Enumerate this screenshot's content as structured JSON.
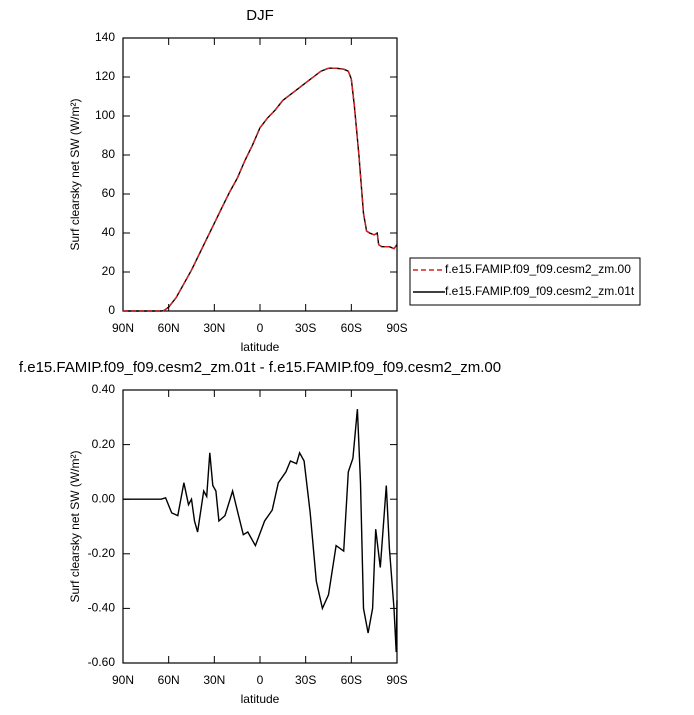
{
  "chart_data": [
    {
      "type": "line",
      "title": "DJF",
      "xlabel": "latitude",
      "ylabel": "Surf clearsky net SW (W/m²)",
      "x": [
        90,
        80,
        70,
        65,
        63,
        60,
        55,
        50,
        45,
        40,
        35,
        30,
        25,
        20,
        15,
        10,
        5,
        0,
        -5,
        -10,
        -15,
        -20,
        -25,
        -30,
        -35,
        -40,
        -45,
        -50,
        -55,
        -58,
        -60,
        -62,
        -65,
        -68,
        -70,
        -72,
        -75,
        -77,
        -78,
        -80,
        -85,
        -88,
        -90
      ],
      "series": [
        {
          "name": "f.e15.FAMIP.f09_f09.cesm2_zm.00",
          "color": "#d62020",
          "line_style": "dashed",
          "values": [
            0,
            0,
            0,
            0,
            0.3,
            2,
            7,
            14,
            21,
            29,
            37,
            45,
            53,
            61,
            68,
            77,
            85,
            94,
            99,
            103,
            108,
            111,
            114,
            117,
            120,
            123,
            124.5,
            124.5,
            124,
            123,
            119,
            105,
            80,
            50,
            41,
            40,
            39,
            40,
            34,
            33,
            33,
            32,
            34
          ]
        },
        {
          "name": "f.e15.FAMIP.f09_f09.cesm2_zm.01t",
          "color": "#000000",
          "line_style": "solid",
          "values": [
            0,
            0,
            0,
            0,
            0.3,
            2,
            7,
            14,
            21,
            29,
            37,
            45,
            53,
            61,
            68,
            77,
            85,
            94,
            99,
            103,
            108,
            111,
            114,
            117,
            120,
            123,
            124.5,
            124.5,
            124,
            123,
            119,
            105,
            80,
            50,
            41,
            40,
            39,
            40,
            34,
            33,
            33,
            32,
            34
          ]
        }
      ],
      "xlim": [
        90,
        -90
      ],
      "xticks": [
        {
          "value": 90,
          "label": "90N"
        },
        {
          "value": 60,
          "label": "60N"
        },
        {
          "value": 30,
          "label": "30N"
        },
        0,
        {
          "value": -30,
          "label": "30S"
        },
        {
          "value": -60,
          "label": "60S"
        },
        {
          "value": -90,
          "label": "90S"
        }
      ],
      "ylim": [
        0,
        140
      ],
      "yticks": [
        0,
        20,
        40,
        60,
        80,
        100,
        120,
        140
      ],
      "legend": "right"
    },
    {
      "type": "line",
      "title": "f.e15.FAMIP.f09_f09.cesm2_zm.01t - f.e15.FAMIP.f09_f09.cesm2_zm.00",
      "xlabel": "latitude",
      "ylabel": "Surf clearsky net SW (W/m²)",
      "x": [
        90,
        75,
        65,
        62,
        58,
        54,
        50,
        47,
        45,
        43,
        41,
        37,
        35,
        33,
        31,
        29,
        27,
        23,
        18,
        15,
        11,
        8,
        3,
        -3,
        -8,
        -12,
        -17,
        -20,
        -24,
        -26,
        -29,
        -33,
        -37,
        -41,
        -45,
        -50,
        -55,
        -58,
        -61,
        -64,
        -66,
        -68,
        -71,
        -74,
        -76,
        -79,
        -83,
        -85,
        -88,
        -89.5,
        -90
      ],
      "series": [
        {
          "color": "#000000",
          "line_style": "solid",
          "values": [
            0,
            0,
            0,
            0.005,
            -0.05,
            -0.06,
            0.06,
            -0.02,
            0,
            -0.08,
            -0.12,
            0.03,
            0.01,
            0.17,
            0.05,
            0.03,
            -0.08,
            -0.06,
            0.03,
            -0.04,
            -0.13,
            -0.12,
            -0.17,
            -0.08,
            -0.04,
            0.06,
            0.1,
            0.14,
            0.13,
            0.17,
            0.14,
            -0.05,
            -0.3,
            -0.4,
            -0.35,
            -0.17,
            -0.19,
            0.1,
            0.15,
            0.33,
            0.06,
            -0.4,
            -0.49,
            -0.4,
            -0.11,
            -0.25,
            0.05,
            -0.18,
            -0.4,
            -0.56,
            -0.37
          ]
        }
      ],
      "xlim": [
        90,
        -90
      ],
      "xticks": [
        {
          "value": 90,
          "label": "90N"
        },
        {
          "value": 60,
          "label": "60N"
        },
        {
          "value": 30,
          "label": "30N"
        },
        0,
        {
          "value": -30,
          "label": "30S"
        },
        {
          "value": -60,
          "label": "60S"
        },
        {
          "value": -90,
          "label": "90S"
        }
      ],
      "ylim": [
        -0.6,
        0.4
      ],
      "yticks": [
        {
          "value": -0.6,
          "label": "-0.60"
        },
        {
          "value": -0.4,
          "label": "-0.40"
        },
        {
          "value": -0.2,
          "label": "-0.20"
        },
        {
          "value": 0,
          "label": "0.00"
        },
        {
          "value": 0.2,
          "label": "0.20"
        },
        {
          "value": 0.4,
          "label": "0.40"
        }
      ]
    }
  ]
}
